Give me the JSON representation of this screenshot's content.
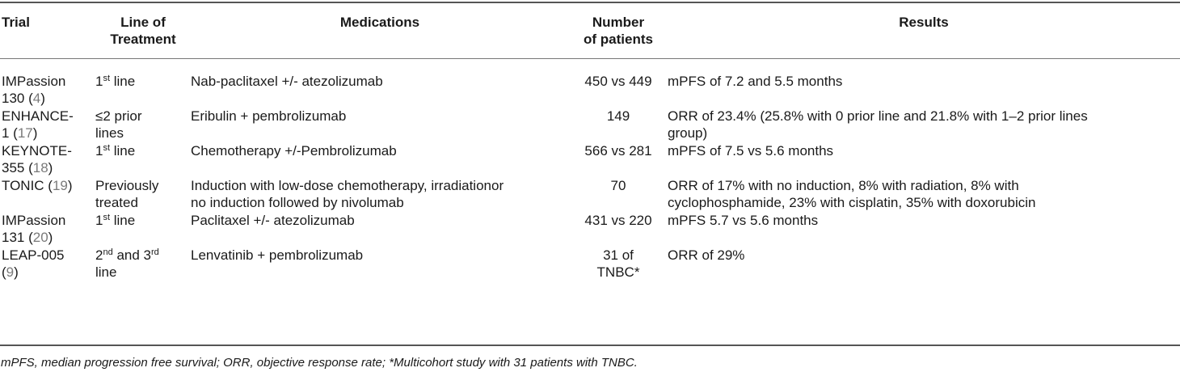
{
  "headers": {
    "trial": "Trial",
    "line_l1": "Line of",
    "line_l2": "Treatment",
    "medications": "Medications",
    "number_l1": "Number",
    "number_l2": "of patients",
    "results": "Results"
  },
  "rows": [
    {
      "trial_a": "IMPassion",
      "trial_b": "130 (",
      "ref": "4",
      "trial_c": ")",
      "line_pre": "1",
      "line_sup": "st",
      "line_post": " line",
      "line_l2": "",
      "meds_l1": "Nab-paclitaxel +/- atezolizumab",
      "meds_l2": "",
      "num_l1": "450 vs 449",
      "num_l2": "",
      "res_l1": "mPFS of 7.2 and 5.5 months",
      "res_l2": ""
    },
    {
      "trial_a": "ENHANCE-",
      "trial_b": "1 (",
      "ref": "17",
      "trial_c": ")",
      "line_pre": "≤2 prior",
      "line_sup": "",
      "line_post": "",
      "line_l2": "lines",
      "meds_l1": "Eribulin + pembrolizumab",
      "meds_l2": "",
      "num_l1": "149",
      "num_l2": "",
      "res_l1": "ORR of 23.4% (25.8% with 0 prior line and 21.8% with 1–2 prior lines",
      "res_l2": "group)"
    },
    {
      "trial_a": "KEYNOTE-",
      "trial_b": "355 (",
      "ref": "18",
      "trial_c": ")",
      "line_pre": "1",
      "line_sup": "st",
      "line_post": " line",
      "line_l2": "",
      "meds_l1": "Chemotherapy +/-Pembrolizumab",
      "meds_l2": "",
      "num_l1": "566 vs 281",
      "num_l2": "",
      "res_l1": "mPFS of 7.5 vs 5.6 months",
      "res_l2": ""
    },
    {
      "trial_a": "TONIC (",
      "trial_b": "",
      "ref": "19",
      "trial_c": ")",
      "line_pre": "Previously",
      "line_sup": "",
      "line_post": "",
      "line_l2": "treated",
      "meds_l1": "Induction with low-dose chemotherapy, irradiationor",
      "meds_l2": "no induction followed by nivolumab",
      "num_l1": "70",
      "num_l2": "",
      "res_l1": "ORR of 17% with no induction, 8% with radiation, 8% with",
      "res_l2": "cyclophosphamide, 23% with cisplatin, 35% with doxorubicin"
    },
    {
      "trial_a": "IMPassion",
      "trial_b": "131 (",
      "ref": "20",
      "trial_c": ")",
      "line_pre": "1",
      "line_sup": "st",
      "line_post": " line",
      "line_l2": "",
      "meds_l1": "Paclitaxel +/- atezolizumab",
      "meds_l2": "",
      "num_l1": "431 vs 220",
      "num_l2": "",
      "res_l1": "mPFS 5.7 vs 5.6 months",
      "res_l2": ""
    },
    {
      "trial_a": "LEAP-005",
      "trial_b": "(",
      "ref": "9",
      "trial_c": ")",
      "line_pre": "2",
      "line_sup": "nd",
      "line_post": " and 3",
      "line_sup2": "rd",
      "line_l2": "line",
      "meds_l1": "Lenvatinib + pembrolizumab",
      "meds_l2": "",
      "num_l1": "31 of",
      "num_l2": "TNBC*",
      "res_l1": "ORR of 29%",
      "res_l2": ""
    }
  ],
  "footnote": "mPFS, median progression free survival; ORR, objective response rate; *Multicohort study with 31 patients with TNBC."
}
